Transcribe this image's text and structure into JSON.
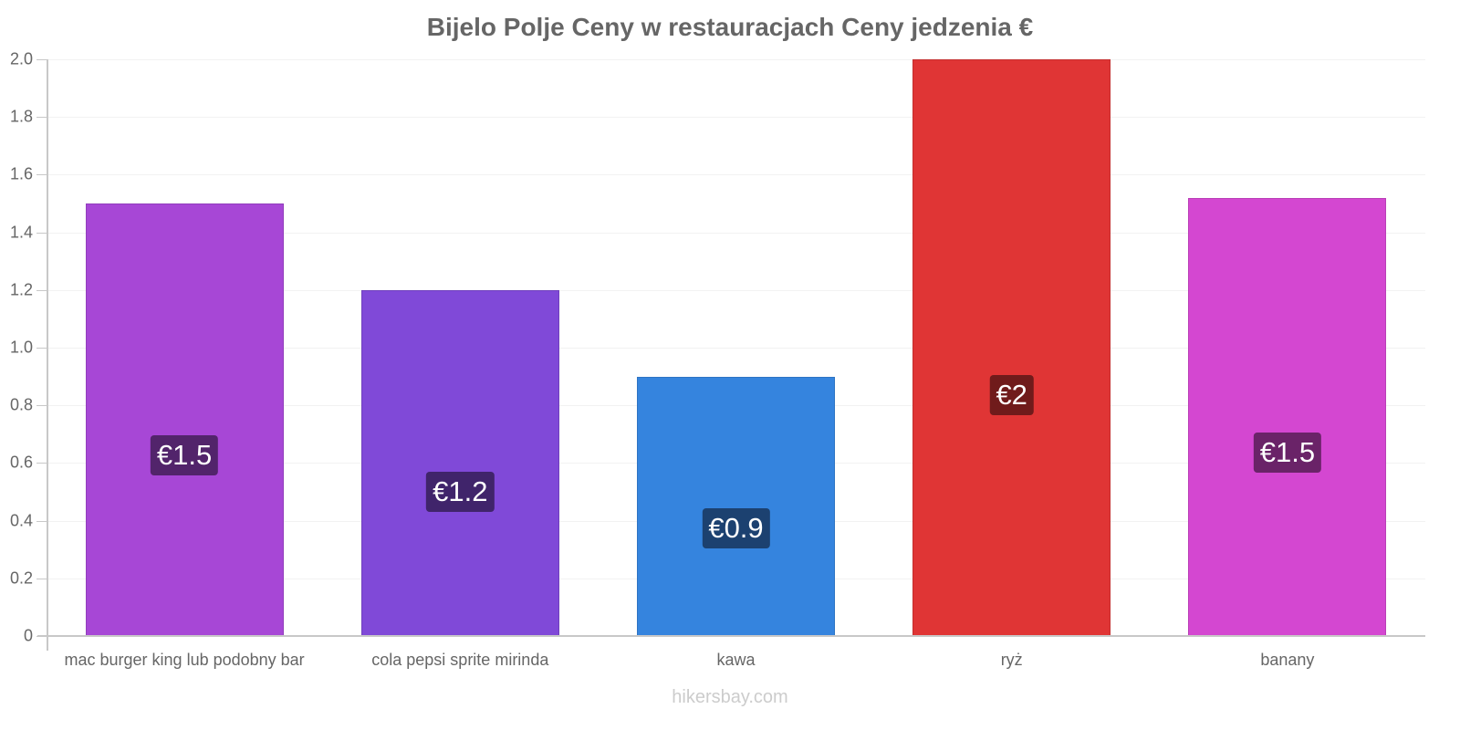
{
  "chart_data": {
    "type": "bar",
    "title": "Bijelo Polje Ceny w restauracjach Ceny jedzenia €",
    "xlabel": "",
    "ylabel": "",
    "ylim": [
      0,
      2.0
    ],
    "yticks": [
      "0",
      "0.2",
      "0.4",
      "0.6",
      "0.8",
      "1.0",
      "1.2",
      "1.4",
      "1.6",
      "1.8",
      "2.0"
    ],
    "grid": true,
    "legend": null,
    "categories": [
      "mac burger king lub podobny bar",
      "cola pepsi sprite mirinda",
      "kawa",
      "ryż",
      "banany"
    ],
    "values": [
      1.5,
      1.2,
      0.9,
      2.0,
      1.52
    ],
    "data_labels": [
      "€1.5",
      "€1.2",
      "€0.9",
      "€2",
      "€1.5"
    ],
    "bar_colors": [
      "#a747d6",
      "#8049d8",
      "#3584de",
      "#e03535",
      "#d447d1"
    ],
    "label_bg_colors": [
      "#52246b",
      "#40246b",
      "#1c4170",
      "#701b1b",
      "#6a2368"
    ]
  },
  "watermark": "hikersbay.com"
}
